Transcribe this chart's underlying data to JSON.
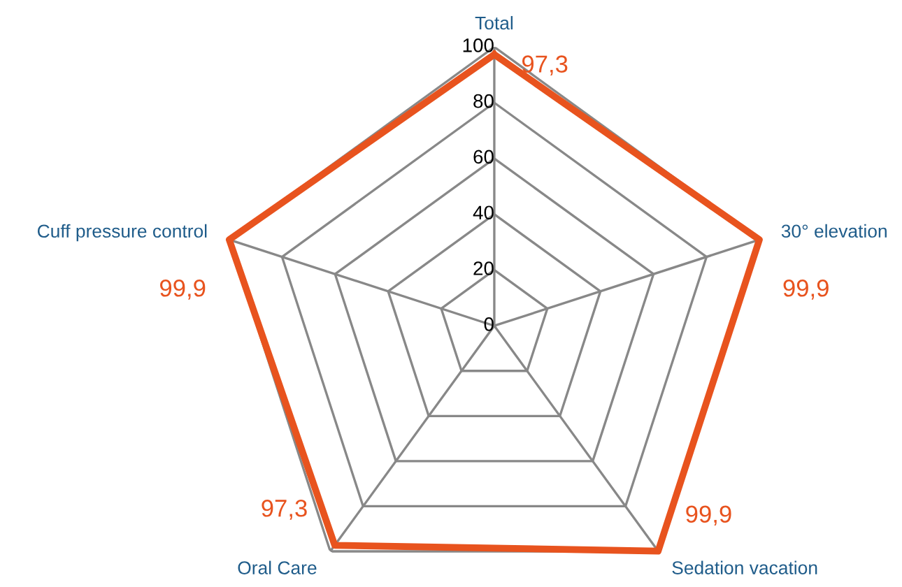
{
  "chart_data": {
    "type": "radar",
    "categories": [
      "Total",
      "30° elevation",
      "Sedation vacation",
      "Oral Care",
      "Cuff pressure control"
    ],
    "series": [
      {
        "color": "#e8531e",
        "values": [
          97.3,
          99.9,
          99.9,
          97.3,
          99.9
        ],
        "value_labels": [
          "97,3",
          "99,9",
          "99,9",
          "97,3",
          "99,9"
        ]
      }
    ],
    "ylim": [
      0,
      100
    ],
    "yticks": [
      0,
      20,
      40,
      60,
      80,
      100
    ],
    "grid": true,
    "marker": "none",
    "line_style": "solid"
  }
}
